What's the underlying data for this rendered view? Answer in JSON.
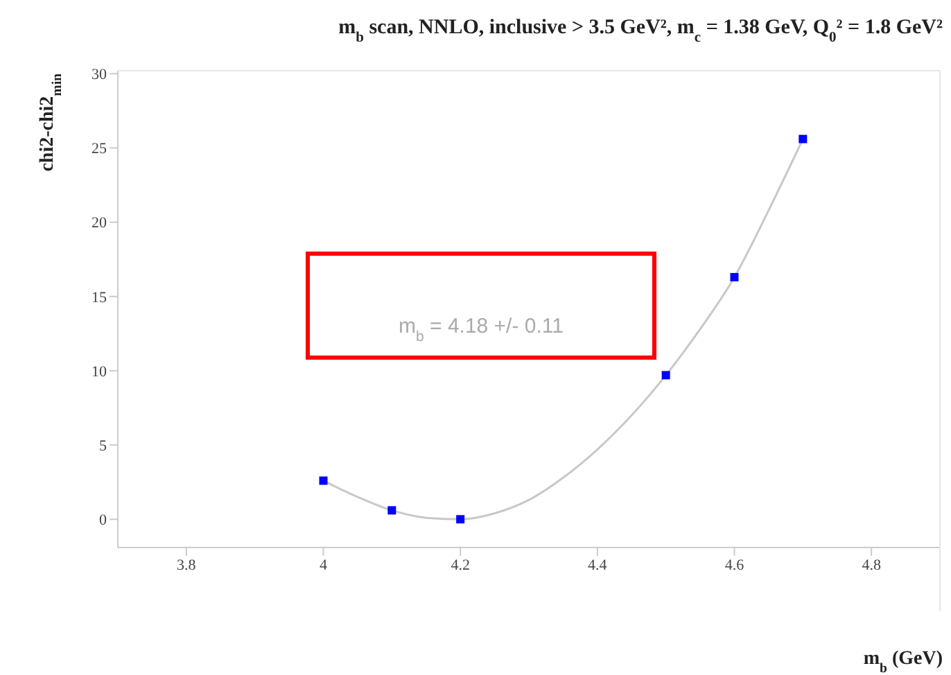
{
  "chart_data": {
    "type": "scatter",
    "title": "m$_{b}$ scan, NNLO, inclusive > 3.5 GeV², m$_{c}$ = 1.38 GeV, Q$_{0}$² = 1.8 GeV²",
    "xlabel": "m$_{b}$ (GeV)",
    "ylabel": "chi2-chi2$_{min}$",
    "annotations": [
      "m$_{b}$ = 4.18  +/- 0.11"
    ],
    "xlim": [
      3.7,
      4.9
    ],
    "xticks": [
      3.8,
      4,
      4.2,
      4.4,
      4.6,
      4.8
    ],
    "ylim": [
      -1.9,
      30.2
    ],
    "yticks": [
      0,
      5,
      10,
      15,
      20,
      25,
      30
    ],
    "marker": "square",
    "series": [
      {
        "color": "#0000ff",
        "x": [
          4,
          4.1,
          4.2,
          4.5,
          4.6,
          4.7
        ],
        "values": [
          2.6,
          0.6,
          0,
          9.7,
          16.3,
          25.6
        ]
      },
      {
        "type": "line",
        "marker": "none",
        "color": "#c8c8c8",
        "x": [
          4,
          4.05,
          4.1,
          4.15,
          4.2,
          4.25,
          4.3,
          4.35,
          4.4,
          4.45,
          4.5,
          4.55,
          4.6,
          4.65,
          4.7
        ],
        "values": [
          2.6,
          1.5,
          0.6,
          0.1,
          0.0,
          0.4,
          1.3,
          2.8,
          4.7,
          7.0,
          9.7,
          12.8,
          16.3,
          20.8,
          25.6
        ]
      }
    ]
  }
}
